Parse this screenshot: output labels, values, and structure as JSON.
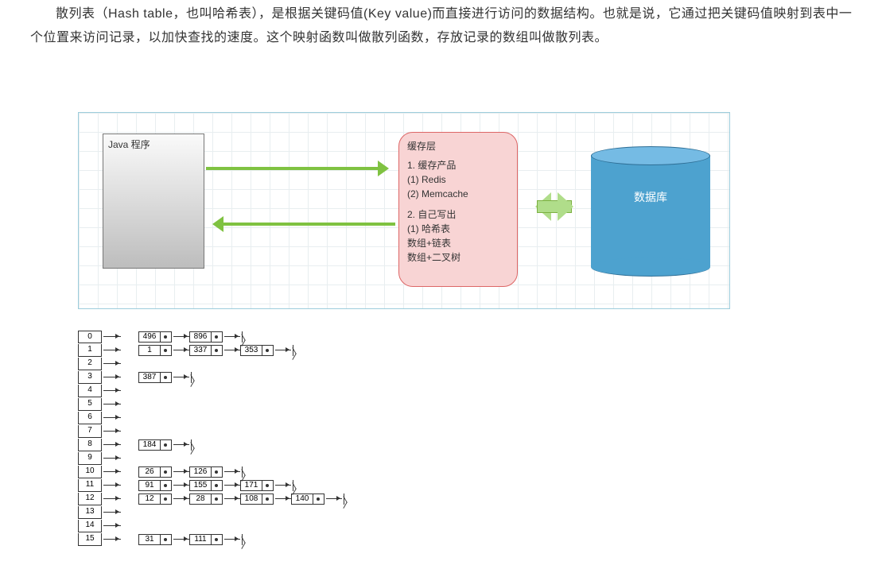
{
  "intro": {
    "text": "散列表（Hash table，也叫哈希表），是根据关键码值(Key value)而直接进行访问的数据结构。也就是说，它通过把关键码值映射到表中一个位置来访问记录，以加快查找的速度。这个映射函数叫做散列函数，存放记录的数组叫做散列表。"
  },
  "diagram": {
    "java_label": "Java 程序",
    "cache": {
      "title": "缓存层",
      "line1": "1. 缓存产品",
      "line2": "(1) Redis",
      "line3": "(2) Memcache",
      "line4": "2. 自己写出",
      "line5": "(1) 哈希表",
      "line6": "数组+链表",
      "line7": "数组+二叉树"
    },
    "db_label": "数据库",
    "colors": {
      "grid_border": "#9dcddc",
      "cache_bg": "#f8d4d4",
      "db_fill": "#4da2cf",
      "arrow_green": "#7fc241"
    }
  },
  "hashTable": {
    "rows": [
      {
        "idx": "0",
        "chain": [
          "496",
          "896"
        ]
      },
      {
        "idx": "1",
        "chain": [
          "1",
          "337",
          "353"
        ]
      },
      {
        "idx": "2",
        "chain": []
      },
      {
        "idx": "3",
        "chain": [
          "387"
        ]
      },
      {
        "idx": "4",
        "chain": []
      },
      {
        "idx": "5",
        "chain": []
      },
      {
        "idx": "6",
        "chain": []
      },
      {
        "idx": "7",
        "chain": []
      },
      {
        "idx": "8",
        "chain": [
          "184"
        ]
      },
      {
        "idx": "9",
        "chain": []
      },
      {
        "idx": "10",
        "chain": [
          "26",
          "126"
        ]
      },
      {
        "idx": "11",
        "chain": [
          "91",
          "155",
          "171"
        ]
      },
      {
        "idx": "12",
        "chain": [
          "12",
          "28",
          "108",
          "140"
        ]
      },
      {
        "idx": "13",
        "chain": []
      },
      {
        "idx": "14",
        "chain": []
      },
      {
        "idx": "15",
        "chain": [
          "31",
          "111"
        ]
      }
    ]
  }
}
